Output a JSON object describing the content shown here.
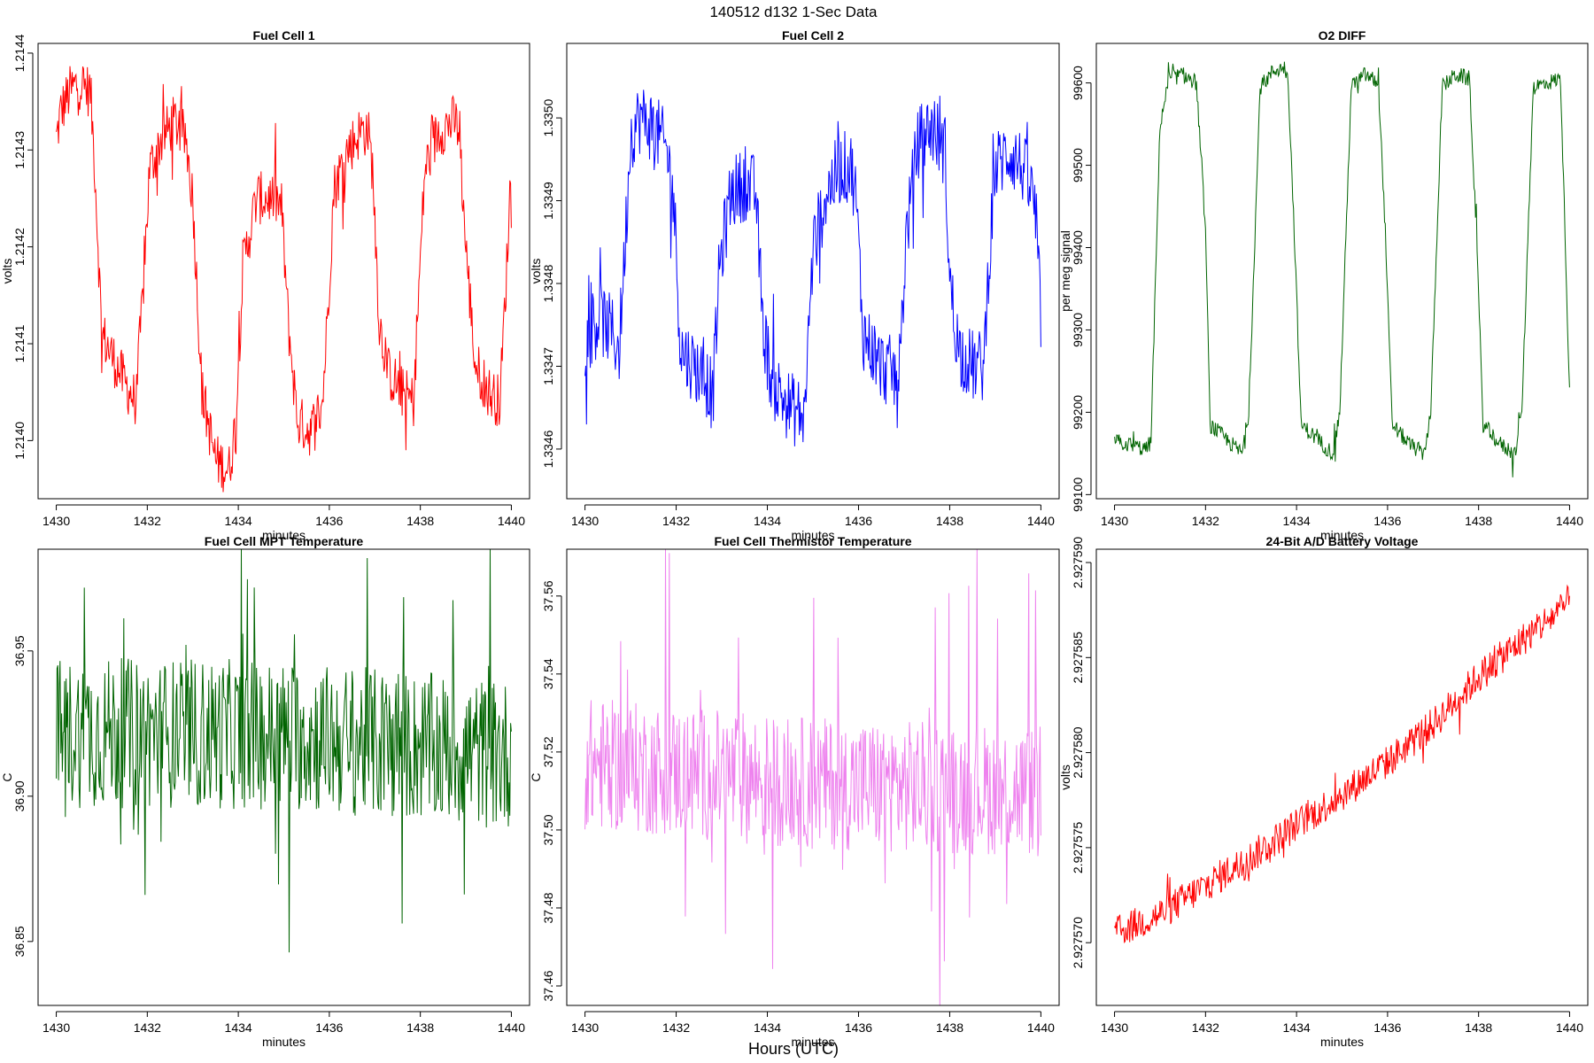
{
  "figure": {
    "title": "140512   d132   1-Sec Data",
    "xlabel": "Hours (UTC)"
  },
  "chart_data": [
    {
      "id": "fc1",
      "type": "line",
      "title": "Fuel Cell 1",
      "xlabel": "minutes",
      "ylabel": "volts",
      "color": "#ff0000",
      "xlim": [
        1429.6,
        1440.4
      ],
      "ylim": [
        1.21394,
        1.21441
      ],
      "xticks": [
        1430,
        1432,
        1434,
        1436,
        1438,
        1440
      ],
      "yticks": [
        1.214,
        1.2141,
        1.2142,
        1.2143,
        1.2144
      ],
      "ytick_labels": [
        "1.2140",
        "1.2141",
        "1.2142",
        "1.2143",
        "1.2144"
      ],
      "series": [
        {
          "name": "Fuel Cell 1",
          "noise": 2.8e-05,
          "spike": 3e-05,
          "x": [
            1430,
            1430.1,
            1430.3,
            1430.5,
            1430.75,
            1430.85,
            1431.0,
            1431.2,
            1431.5,
            1431.75,
            1431.9,
            1432.05,
            1432.3,
            1432.6,
            1432.85,
            1433.0,
            1433.2,
            1433.5,
            1433.8,
            1433.95,
            1434.1,
            1434.4,
            1434.8,
            1434.95,
            1435.1,
            1435.3,
            1435.6,
            1435.85,
            1435.95,
            1436.1,
            1436.4,
            1436.7,
            1436.85,
            1436.95,
            1437.1,
            1437.3,
            1437.6,
            1437.85,
            1437.95,
            1438.1,
            1438.4,
            1438.75,
            1438.85,
            1439.0,
            1439.2,
            1439.5,
            1439.75,
            1439.9,
            1440
          ],
          "y": [
            1.21431,
            1.21434,
            1.21436,
            1.21437,
            1.21436,
            1.21428,
            1.21411,
            1.21409,
            1.21406,
            1.21404,
            1.21415,
            1.21428,
            1.21431,
            1.21433,
            1.21431,
            1.21425,
            1.21405,
            1.21398,
            1.21397,
            1.21402,
            1.21418,
            1.21425,
            1.21425,
            1.21424,
            1.21412,
            1.21402,
            1.21401,
            1.21404,
            1.21412,
            1.21426,
            1.2143,
            1.21432,
            1.21432,
            1.21428,
            1.21412,
            1.21407,
            1.21405,
            1.21404,
            1.21414,
            1.21428,
            1.21432,
            1.21433,
            1.21432,
            1.2142,
            1.21408,
            1.21405,
            1.21404,
            1.21418,
            1.21429
          ]
        }
      ]
    },
    {
      "id": "fc2",
      "type": "line",
      "title": "Fuel Cell 2",
      "xlabel": "minutes",
      "ylabel": "volts",
      "color": "#0000ff",
      "xlim": [
        1429.6,
        1440.4
      ],
      "ylim": [
        1.33454,
        1.33509
      ],
      "xticks": [
        1430,
        1432,
        1434,
        1436,
        1438,
        1440
      ],
      "yticks": [
        1.3346,
        1.3347,
        1.3348,
        1.3349,
        1.335
      ],
      "ytick_labels": [
        "1.3346",
        "1.3347",
        "1.3348",
        "1.3349",
        "1.3350"
      ],
      "series": [
        {
          "name": "Fuel Cell 2",
          "noise": 4.5e-05,
          "spike": 4e-05,
          "x": [
            1430,
            1430.3,
            1430.6,
            1430.75,
            1430.9,
            1431.0,
            1431.2,
            1431.5,
            1431.8,
            1431.95,
            1432.1,
            1432.4,
            1432.7,
            1432.8,
            1432.95,
            1433.2,
            1433.5,
            1433.75,
            1433.9,
            1434.1,
            1434.5,
            1434.8,
            1434.85,
            1435.0,
            1435.3,
            1435.6,
            1435.85,
            1435.95,
            1436.1,
            1436.5,
            1436.8,
            1436.9,
            1437.05,
            1437.3,
            1437.6,
            1437.9,
            1438.0,
            1438.2,
            1438.5,
            1438.75,
            1438.85,
            1439.0,
            1439.3,
            1439.6,
            1439.85,
            1440
          ],
          "y": [
            1.33473,
            1.33476,
            1.33474,
            1.33472,
            1.33487,
            1.33498,
            1.335,
            1.33499,
            1.33496,
            1.3349,
            1.33472,
            1.3347,
            1.33468,
            1.33466,
            1.33482,
            1.33491,
            1.33492,
            1.33491,
            1.33475,
            1.33468,
            1.33465,
            1.33464,
            1.33468,
            1.33484,
            1.33491,
            1.33494,
            1.33494,
            1.3349,
            1.33474,
            1.3347,
            1.33469,
            1.3347,
            1.33486,
            1.33497,
            1.33499,
            1.33496,
            1.3348,
            1.33472,
            1.3347,
            1.3347,
            1.33482,
            1.33494,
            1.33496,
            1.33494,
            1.3349,
            1.33476
          ]
        }
      ]
    },
    {
      "id": "o2",
      "type": "line",
      "title": "O2 DIFF",
      "xlabel": "minutes",
      "ylabel": "per meg signal",
      "color": "#006400",
      "xlim": [
        1429.6,
        1440.4
      ],
      "ylim": [
        99095,
        99648
      ],
      "xticks": [
        1430,
        1432,
        1434,
        1436,
        1438,
        1440
      ],
      "yticks": [
        99100,
        99200,
        99300,
        99400,
        99500,
        99600
      ],
      "ytick_labels": [
        "99100",
        "99200",
        "99300",
        "99400",
        "99500",
        "99600"
      ],
      "series": [
        {
          "name": "O2 DIFF",
          "noise": 10,
          "spike": 12,
          "x": [
            1430,
            1430.7,
            1430.8,
            1431.0,
            1431.2,
            1431.5,
            1431.8,
            1432.0,
            1432.1,
            1432.5,
            1432.8,
            1432.95,
            1433.2,
            1433.5,
            1433.8,
            1433.95,
            1434.1,
            1434.5,
            1434.8,
            1434.95,
            1435.2,
            1435.5,
            1435.8,
            1435.95,
            1436.1,
            1436.5,
            1436.8,
            1436.95,
            1437.2,
            1437.5,
            1437.8,
            1437.95,
            1438.1,
            1438.5,
            1438.8,
            1438.95,
            1439.2,
            1439.5,
            1439.8,
            1439.9,
            1440
          ],
          "y": [
            99165,
            99155,
            99165,
            99550,
            99605,
            99610,
            99600,
            99420,
            99185,
            99165,
            99150,
            99200,
            99595,
            99615,
            99620,
            99420,
            99185,
            99165,
            99150,
            99200,
            99595,
            99610,
            99600,
            99420,
            99185,
            99160,
            99150,
            99200,
            99595,
            99610,
            99605,
            99420,
            99185,
            99160,
            99150,
            99200,
            99595,
            99600,
            99605,
            99420,
            99220
          ]
        }
      ]
    },
    {
      "id": "mpt",
      "type": "line",
      "title": "Fuel Cell MPT Temperature",
      "xlabel": "minutes",
      "ylabel": "C",
      "color": "#006400",
      "xlim": [
        1429.6,
        1440.4
      ],
      "ylim": [
        36.828,
        36.985
      ],
      "xticks": [
        1430,
        1432,
        1434,
        1436,
        1438,
        1440
      ],
      "yticks": [
        36.85,
        36.9,
        36.95
      ],
      "ytick_labels": [
        "36.85",
        "36.90",
        "36.95"
      ],
      "series": [
        {
          "name": "MPT Temperature",
          "noise": 0.026,
          "spike": 0.03,
          "x": [
            1430,
            1435,
            1440
          ],
          "y": [
            36.922,
            36.921,
            36.914
          ]
        }
      ]
    },
    {
      "id": "therm",
      "type": "line",
      "title": "Fuel Cell Thermistor Temperature",
      "xlabel": "minutes",
      "ylabel": "C",
      "color": "#ee82ee",
      "xlim": [
        1429.6,
        1440.4
      ],
      "ylim": [
        37.455,
        37.572
      ],
      "xticks": [
        1430,
        1432,
        1434,
        1436,
        1438,
        1440
      ],
      "yticks": [
        37.46,
        37.48,
        37.5,
        37.52,
        37.54,
        37.56
      ],
      "ytick_labels": [
        "37.46",
        "37.48",
        "37.50",
        "37.52",
        "37.54",
        "37.56"
      ],
      "series": [
        {
          "name": "Thermistor Temperature",
          "noise": 0.017,
          "spike": 0.028,
          "x": [
            1430,
            1435,
            1440
          ],
          "y": [
            37.517,
            37.512,
            37.51
          ]
        }
      ]
    },
    {
      "id": "batt",
      "type": "line",
      "title": "24-Bit A/D Battery Voltage",
      "xlabel": "minutes",
      "ylabel": "volts",
      "color": "#ff0000",
      "xlim": [
        1429.6,
        1440.4
      ],
      "ylim": [
        2.9275667,
        2.9275907
      ],
      "xticks": [
        1430,
        1432,
        1434,
        1436,
        1438,
        1440
      ],
      "yticks": [
        2.92757,
        2.927575,
        2.92758,
        2.927585,
        2.92759
      ],
      "ytick_labels": [
        "2.927570",
        "2.927575",
        "2.927580",
        "2.927585",
        "2.927590"
      ],
      "series": [
        {
          "name": "Battery Voltage",
          "noise": 9e-07,
          "spike": 7e-07,
          "x": [
            1430,
            1431,
            1432,
            1433,
            1434,
            1435,
            1436,
            1437,
            1438,
            1439,
            1439.8,
            1440
          ],
          "y": [
            2.9275705,
            2.9275715,
            2.927573,
            2.9275745,
            2.9275762,
            2.9275778,
            2.9275795,
            2.9275815,
            2.927584,
            2.927586,
            2.9275875,
            2.927588
          ]
        }
      ]
    }
  ]
}
